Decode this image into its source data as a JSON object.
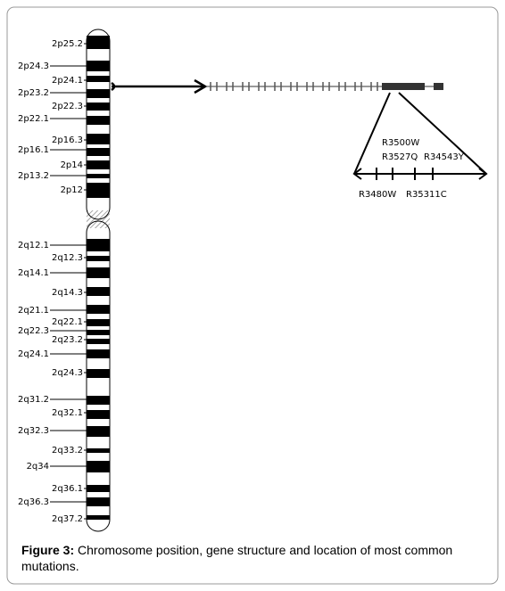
{
  "bands": [
    "2p25.2",
    "2p24.3",
    "2p24.1",
    "2p23.2",
    "2p22.3",
    "2p22.1",
    "2p16.3",
    "2p16.1",
    "2p14",
    "2p13.2",
    "2p12",
    "2q12.1",
    "2q12.3",
    "2q14.1",
    "2q14.3",
    "2q21.1",
    "2q22.1",
    "2q22.3",
    "2q23.2",
    "2q24.1",
    "2q24.3",
    "2q31.2",
    "2q32.1",
    "2q32.3",
    "2q33.2",
    "2q34",
    "2q36.1",
    "2q36.3",
    "2q37.2"
  ],
  "mutations": [
    "R3500W",
    "R3527Q",
    "R34543Y",
    "R3480W",
    "R35311C"
  ],
  "caption": {
    "label": "Figure 3:",
    "text": "Chromosome position, gene structure and location of most common mutations."
  }
}
